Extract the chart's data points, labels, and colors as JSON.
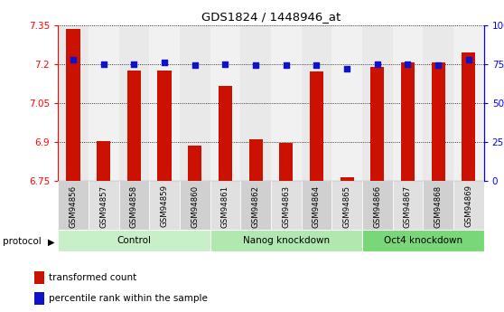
{
  "title": "GDS1824 / 1448946_at",
  "samples": [
    "GSM94856",
    "GSM94857",
    "GSM94858",
    "GSM94859",
    "GSM94860",
    "GSM94861",
    "GSM94862",
    "GSM94863",
    "GSM94864",
    "GSM94865",
    "GSM94866",
    "GSM94867",
    "GSM94868",
    "GSM94869"
  ],
  "bar_values": [
    7.335,
    6.905,
    7.175,
    7.175,
    6.885,
    7.115,
    6.91,
    6.895,
    7.17,
    6.765,
    7.19,
    7.205,
    7.205,
    7.245
  ],
  "dot_values": [
    78,
    75,
    75,
    76,
    74,
    75,
    74,
    74,
    74,
    72,
    75,
    75,
    74,
    78
  ],
  "groups": [
    {
      "label": "Control",
      "start": 0,
      "end": 5
    },
    {
      "label": "Nanog knockdown",
      "start": 5,
      "end": 10
    },
    {
      "label": "Oct4 knockdown",
      "start": 10,
      "end": 14
    }
  ],
  "ylim_left": [
    6.75,
    7.35
  ],
  "ylim_right": [
    0,
    100
  ],
  "yticks_left": [
    6.75,
    6.9,
    7.05,
    7.2,
    7.35
  ],
  "ytick_labels_left": [
    "6.75",
    "6.9",
    "7.05",
    "7.2",
    "7.35"
  ],
  "yticks_right": [
    0,
    25,
    50,
    75,
    100
  ],
  "ytick_labels_right": [
    "0",
    "25",
    "50",
    "75",
    "100%"
  ],
  "bar_color": "#cc1100",
  "dot_color": "#1111cc",
  "background_color": "#ffffff",
  "cell_color_odd": "#d0d0d0",
  "cell_color_even": "#e0e0e0",
  "group_colors": [
    "#c8f0c8",
    "#b0e8b0",
    "#78d878"
  ],
  "legend_bar_label": "transformed count",
  "legend_dot_label": "percentile rank within the sample",
  "protocol_label": "protocol"
}
